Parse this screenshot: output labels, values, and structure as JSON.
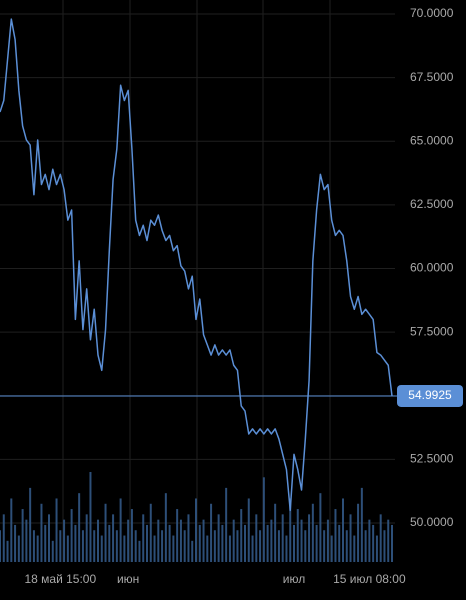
{
  "chart_data": {
    "type": "line",
    "categories": [
      null,
      null,
      null,
      null,
      null,
      null,
      null,
      null,
      null,
      null,
      null,
      null,
      null,
      null,
      null,
      null,
      "18 май 15:00",
      null,
      null,
      null,
      null,
      null,
      null,
      null,
      null,
      null,
      null,
      null,
      null,
      null,
      null,
      null,
      null,
      null,
      "июн",
      null,
      null,
      null,
      null,
      null,
      null,
      null,
      null,
      null,
      null,
      null,
      null,
      null,
      null,
      null,
      null,
      null,
      null,
      null,
      null,
      null,
      null,
      null,
      null,
      null,
      null,
      null,
      null,
      null,
      null,
      null,
      null,
      null,
      null,
      null,
      null,
      null,
      null,
      null,
      null,
      null,
      null,
      null,
      "июл",
      null,
      null,
      null,
      null,
      null,
      null,
      null,
      null,
      null,
      null,
      null,
      null,
      null,
      null,
      null,
      null,
      null,
      null,
      null,
      "15 июл 08:00",
      null,
      null,
      null,
      null,
      null,
      null
    ],
    "series": [
      {
        "color": "#5b8fd6",
        "values": [
          66.15,
          66.6,
          68.2,
          69.8,
          69.0,
          67.0,
          65.6,
          65.05,
          64.85,
          62.9,
          65.05,
          63.3,
          63.7,
          63.1,
          63.9,
          63.3,
          63.7,
          63.1,
          61.9,
          62.3,
          58.0,
          60.3,
          57.6,
          59.2,
          57.2,
          58.4,
          56.6,
          56.0,
          57.6,
          60.7,
          63.5,
          64.7,
          67.2,
          66.6,
          67.0,
          64.7,
          61.9,
          61.3,
          61.7,
          61.1,
          61.9,
          61.7,
          62.1,
          61.5,
          61.1,
          61.3,
          60.7,
          60.9,
          60.1,
          59.9,
          59.2,
          59.7,
          58.0,
          58.8,
          57.4,
          57.0,
          56.6,
          57.0,
          56.6,
          56.8,
          56.6,
          56.8,
          56.2,
          56.0,
          54.6,
          54.4,
          53.5,
          53.7,
          53.5,
          53.7,
          53.5,
          53.7,
          53.5,
          53.7,
          53.3,
          52.7,
          52.1,
          50.5,
          52.7,
          52.1,
          51.3,
          53.3,
          55.6,
          60.3,
          62.3,
          63.7,
          63.1,
          63.3,
          61.9,
          61.3,
          61.5,
          61.3,
          60.3,
          58.9,
          58.4,
          58.9,
          58.2,
          58.4,
          58.2,
          58.0,
          56.7,
          56.6,
          56.4,
          56.2,
          54.9925
        ]
      }
    ],
    "volume": {
      "color": "#2d4f78",
      "values": [
        30,
        45,
        20,
        60,
        35,
        25,
        50,
        40,
        70,
        30,
        25,
        55,
        35,
        45,
        20,
        60,
        30,
        40,
        25,
        50,
        35,
        65,
        30,
        45,
        85,
        30,
        40,
        25,
        55,
        35,
        45,
        30,
        60,
        25,
        40,
        50,
        30,
        20,
        45,
        35,
        55,
        25,
        40,
        30,
        65,
        35,
        25,
        50,
        40,
        30,
        45,
        20,
        60,
        35,
        40,
        25,
        55,
        30,
        45,
        35,
        70,
        25,
        40,
        30,
        50,
        35,
        60,
        25,
        45,
        30,
        80,
        35,
        40,
        55,
        30,
        45,
        25,
        60,
        35,
        50,
        40,
        30,
        45,
        55,
        35,
        65,
        30,
        40,
        25,
        50,
        35,
        60,
        30,
        45,
        25,
        55,
        70,
        30,
        40,
        35,
        25,
        45,
        30,
        40,
        35
      ]
    },
    "current_price": 54.9925,
    "ylim": [
      48.47,
      70.55
    ],
    "yticks": [
      {
        "value": 50,
        "label": "50.0000"
      },
      {
        "value": 52.5,
        "label": "52.5000"
      },
      {
        "value": 55,
        "label": "55.0000"
      },
      {
        "value": 57.5,
        "label": "57.5000"
      },
      {
        "value": 60,
        "label": "60.0000"
      },
      {
        "value": 62.5,
        "label": "62.5000"
      },
      {
        "value": 65,
        "label": "65.0000"
      },
      {
        "value": 67.5,
        "label": "67.5000"
      },
      {
        "value": 70,
        "label": "70.0000"
      }
    ],
    "grid": true
  }
}
